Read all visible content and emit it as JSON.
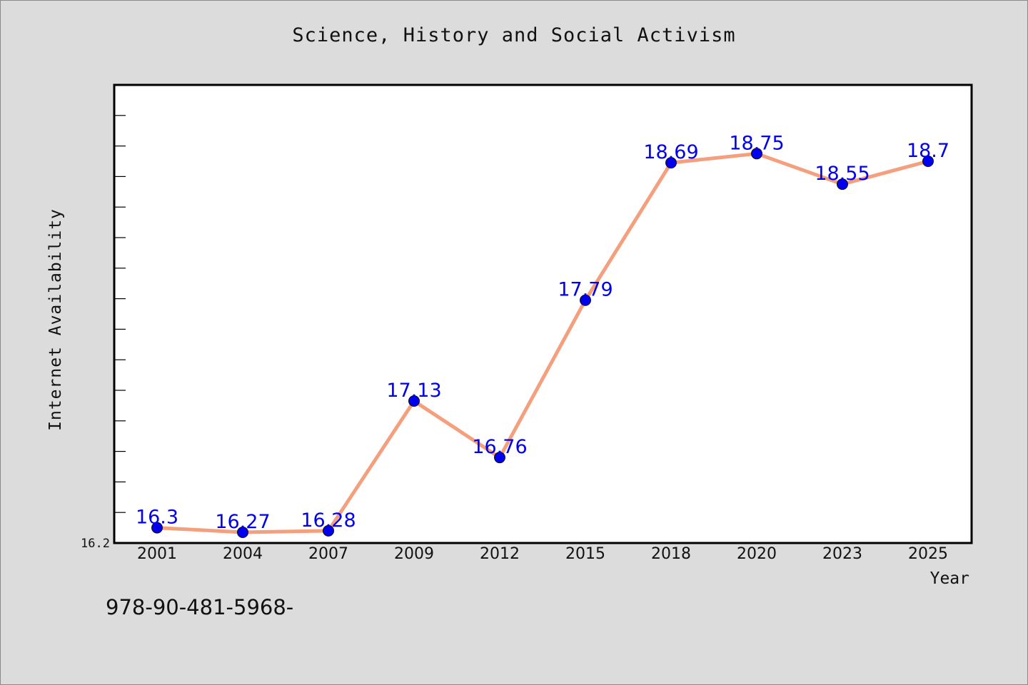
{
  "chart_data": {
    "type": "line",
    "title": "Science, History and Social Activism",
    "xlabel": "Year",
    "ylabel": "Internet Availability",
    "categories": [
      "2001",
      "2004",
      "2007",
      "2009",
      "2012",
      "2015",
      "2018",
      "2020",
      "2023",
      "2025"
    ],
    "series": [
      {
        "values": [
          16.3,
          16.27,
          16.28,
          17.13,
          16.76,
          17.79,
          18.69,
          18.75,
          18.55,
          18.7
        ],
        "labels": [
          "16.3",
          "16.27",
          "16.28",
          "17.13",
          "16.76",
          "17.79",
          "18.69",
          "18.75",
          "18.55",
          "18.7"
        ]
      }
    ],
    "ylim": [
      16.2,
      19.2
    ],
    "ytick_labels": [
      "16.2"
    ],
    "grid": false,
    "line_color": "#f4a07e",
    "marker_color": "#0000ee",
    "label_color": "#0000ee"
  },
  "footer": {
    "code": "978-90-481-5968-"
  }
}
